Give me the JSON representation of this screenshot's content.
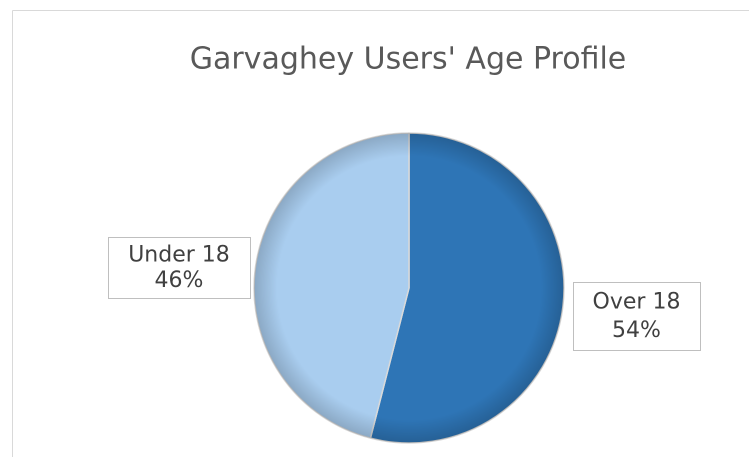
{
  "chart_data": {
    "type": "pie",
    "title": "Garvaghey Users' Age Profile",
    "categories": [
      "Over 18",
      "Under 18"
    ],
    "values": [
      54,
      46
    ],
    "value_labels": [
      "54%",
      "46%"
    ],
    "colors": [
      "#2e75b6",
      "#a9cdef"
    ]
  }
}
